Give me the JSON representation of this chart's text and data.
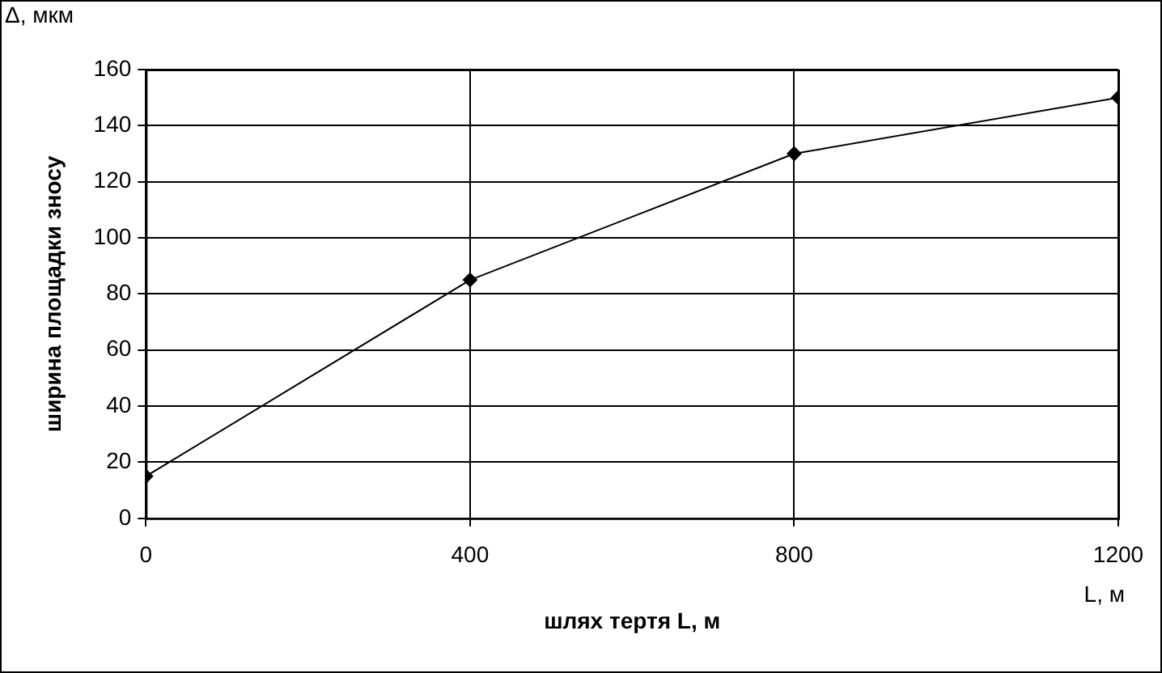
{
  "chart_data": {
    "type": "line",
    "xlabel": "шлях тертя L, м",
    "ylabel": "ширина площадки зносу",
    "annotations": [
      "Δ, мкм",
      "L, м"
    ],
    "x": [
      0,
      400,
      800,
      1200
    ],
    "series": [
      {
        "color": "#000000",
        "values": [
          15,
          85,
          130,
          150
        ]
      }
    ],
    "xlim": [
      0,
      1200
    ],
    "xticks": [
      0,
      400,
      800,
      1200
    ],
    "ylim": [
      0,
      160
    ],
    "yticks": [
      0,
      20,
      40,
      60,
      80,
      100,
      120,
      140,
      160
    ],
    "grid": true,
    "legend": false,
    "marker": "diamond",
    "line_style": "solid"
  }
}
